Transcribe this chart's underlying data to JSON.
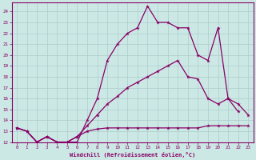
{
  "xlabel": "Windchill (Refroidissement éolien,°C)",
  "background_color": "#cce8e4",
  "grid_color": "#aacccc",
  "line_color": "#880066",
  "xlim": [
    -0.5,
    23.5
  ],
  "ylim": [
    12,
    24.8
  ],
  "yticks": [
    12,
    13,
    14,
    15,
    16,
    17,
    18,
    19,
    20,
    21,
    22,
    23,
    24
  ],
  "xticks": [
    0,
    1,
    2,
    3,
    4,
    5,
    6,
    7,
    8,
    9,
    10,
    11,
    12,
    13,
    14,
    15,
    16,
    17,
    18,
    19,
    20,
    21,
    22,
    23
  ],
  "line1_x": [
    0,
    1,
    2,
    3,
    4,
    5,
    6,
    7,
    8,
    9,
    10,
    11,
    12,
    13,
    14,
    15,
    16,
    17,
    18,
    19,
    20,
    21,
    22,
    23
  ],
  "line1_y": [
    13.3,
    13.0,
    12.0,
    12.5,
    12.0,
    12.0,
    12.0,
    14.0,
    16.0,
    19.5,
    21.0,
    22.0,
    22.5,
    24.5,
    23.0,
    23.0,
    22.5,
    22.5,
    20.0,
    19.5,
    22.5,
    16.0,
    14.8,
    null
  ],
  "line2_x": [
    0,
    1,
    2,
    3,
    4,
    5,
    6,
    7,
    8,
    9,
    10,
    11,
    12,
    13,
    14,
    15,
    16,
    17,
    18,
    19,
    20,
    21,
    22,
    23
  ],
  "line2_y": [
    13.3,
    13.0,
    12.0,
    12.5,
    12.0,
    12.0,
    12.5,
    13.5,
    14.5,
    15.5,
    16.2,
    17.0,
    17.5,
    18.0,
    18.5,
    19.0,
    19.5,
    18.0,
    17.8,
    16.0,
    15.5,
    16.0,
    15.5,
    14.5
  ],
  "line3_x": [
    0,
    1,
    2,
    3,
    4,
    5,
    6,
    7,
    8,
    9,
    10,
    11,
    12,
    13,
    14,
    15,
    16,
    17,
    18,
    19,
    20,
    21,
    22,
    23
  ],
  "line3_y": [
    13.3,
    13.0,
    12.0,
    12.5,
    12.0,
    12.0,
    12.5,
    13.0,
    13.2,
    13.3,
    13.3,
    13.3,
    13.3,
    13.3,
    13.3,
    13.3,
    13.3,
    13.3,
    13.3,
    13.5,
    13.5,
    13.5,
    13.5,
    13.5
  ]
}
